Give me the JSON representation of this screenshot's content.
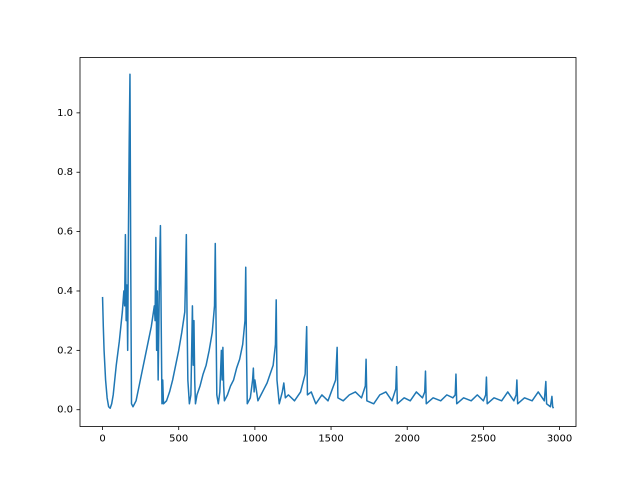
{
  "chart_data": {
    "type": "line",
    "x": [
      0,
      5,
      10,
      20,
      30,
      40,
      50,
      60,
      70,
      80,
      90,
      100,
      110,
      120,
      130,
      140,
      145,
      150,
      155,
      160,
      165,
      170,
      175,
      180,
      185,
      190,
      200,
      220,
      240,
      260,
      280,
      300,
      320,
      340,
      345,
      350,
      355,
      360,
      365,
      370,
      375,
      380,
      385,
      390,
      395,
      400,
      420,
      440,
      460,
      480,
      500,
      520,
      540,
      545,
      550,
      555,
      560,
      570,
      580,
      585,
      590,
      595,
      600,
      605,
      610,
      620,
      640,
      660,
      680,
      700,
      720,
      735,
      740,
      745,
      750,
      760,
      770,
      780,
      785,
      790,
      795,
      800,
      820,
      840,
      860,
      880,
      900,
      920,
      935,
      940,
      945,
      950,
      970,
      985,
      990,
      995,
      1000,
      1020,
      1040,
      1060,
      1080,
      1100,
      1120,
      1135,
      1140,
      1145,
      1160,
      1180,
      1190,
      1200,
      1220,
      1260,
      1300,
      1330,
      1340,
      1345,
      1370,
      1400,
      1440,
      1480,
      1530,
      1540,
      1545,
      1580,
      1620,
      1660,
      1700,
      1725,
      1730,
      1735,
      1780,
      1820,
      1860,
      1900,
      1925,
      1930,
      1935,
      1980,
      2020,
      2060,
      2100,
      2115,
      2120,
      2125,
      2170,
      2220,
      2260,
      2300,
      2315,
      2320,
      2325,
      2370,
      2420,
      2460,
      2500,
      2515,
      2520,
      2525,
      2570,
      2620,
      2660,
      2700,
      2715,
      2720,
      2725,
      2770,
      2820,
      2860,
      2900,
      2910,
      2915,
      2940,
      2950,
      2955,
      2960
    ],
    "series": [
      {
        "color": "#1f77b4",
        "values": [
          0.38,
          0.28,
          0.2,
          0.1,
          0.04,
          0.01,
          0.005,
          0.02,
          0.05,
          0.1,
          0.15,
          0.19,
          0.23,
          0.28,
          0.33,
          0.4,
          0.35,
          0.59,
          0.3,
          0.42,
          0.2,
          0.6,
          0.9,
          1.13,
          0.5,
          0.02,
          0.01,
          0.03,
          0.08,
          0.13,
          0.18,
          0.23,
          0.28,
          0.35,
          0.3,
          0.58,
          0.2,
          0.4,
          0.1,
          0.3,
          0.5,
          0.62,
          0.3,
          0.02,
          0.1,
          0.02,
          0.03,
          0.06,
          0.1,
          0.15,
          0.2,
          0.26,
          0.33,
          0.45,
          0.59,
          0.3,
          0.1,
          0.02,
          0.05,
          0.2,
          0.35,
          0.15,
          0.3,
          0.1,
          0.02,
          0.05,
          0.08,
          0.12,
          0.15,
          0.2,
          0.26,
          0.35,
          0.56,
          0.3,
          0.05,
          0.02,
          0.06,
          0.2,
          0.1,
          0.21,
          0.08,
          0.03,
          0.05,
          0.08,
          0.1,
          0.14,
          0.17,
          0.22,
          0.3,
          0.48,
          0.2,
          0.02,
          0.04,
          0.1,
          0.14,
          0.06,
          0.1,
          0.03,
          0.05,
          0.07,
          0.09,
          0.12,
          0.15,
          0.22,
          0.37,
          0.1,
          0.02,
          0.06,
          0.09,
          0.04,
          0.05,
          0.03,
          0.06,
          0.12,
          0.28,
          0.05,
          0.06,
          0.02,
          0.05,
          0.03,
          0.1,
          0.21,
          0.04,
          0.03,
          0.05,
          0.06,
          0.04,
          0.08,
          0.17,
          0.03,
          0.02,
          0.05,
          0.06,
          0.03,
          0.07,
          0.145,
          0.02,
          0.04,
          0.03,
          0.06,
          0.04,
          0.06,
          0.13,
          0.02,
          0.04,
          0.03,
          0.05,
          0.04,
          0.05,
          0.12,
          0.02,
          0.04,
          0.03,
          0.05,
          0.03,
          0.05,
          0.11,
          0.02,
          0.04,
          0.03,
          0.06,
          0.03,
          0.05,
          0.1,
          0.02,
          0.04,
          0.03,
          0.06,
          0.03,
          0.095,
          0.02,
          0.01,
          0.045,
          0.01,
          0.005
        ]
      }
    ],
    "xlim": [
      -148,
      3108
    ],
    "ylim": [
      -0.0565,
      1.1865
    ],
    "xticks": [
      0,
      500,
      1000,
      1500,
      2000,
      2500,
      3000
    ],
    "yticks": [
      {
        "value": 0,
        "label": "0.0"
      },
      0.2,
      0.4,
      0.6,
      0.8,
      {
        "value": 1,
        "label": "1.0"
      }
    ]
  }
}
